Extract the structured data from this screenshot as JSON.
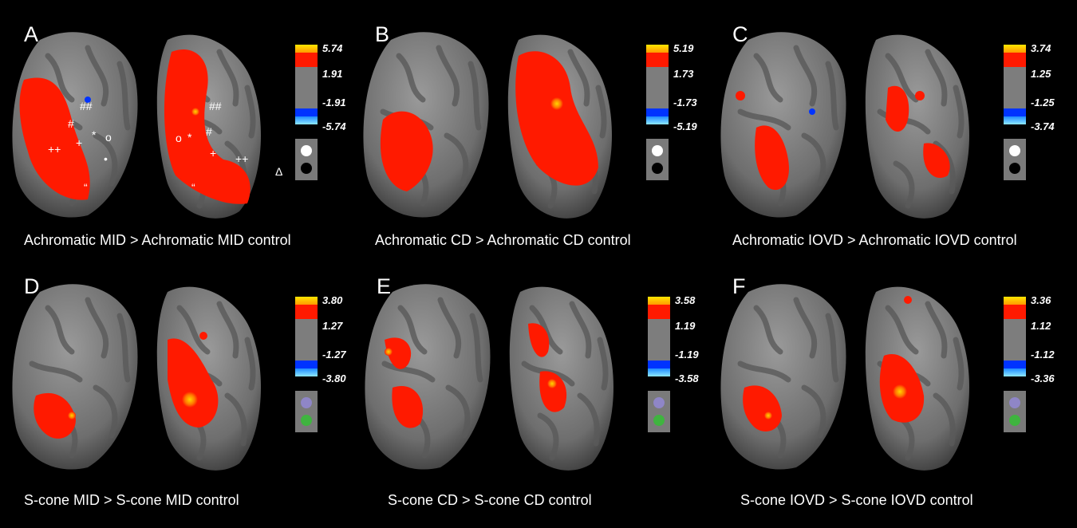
{
  "panels": [
    {
      "letter": "A",
      "caption": "Achromatic MID > Achromatic MID control",
      "scale": {
        "max_pos": "5.74",
        "thr_pos": "1.91",
        "thr_neg": "-1.91",
        "max_neg": "-5.74"
      },
      "stim": [
        "white",
        "black"
      ]
    },
    {
      "letter": "B",
      "caption": "Achromatic CD > Achromatic CD control",
      "scale": {
        "max_pos": "5.19",
        "thr_pos": "1.73",
        "thr_neg": "-1.73",
        "max_neg": "-5.19"
      },
      "stim": [
        "white",
        "black"
      ]
    },
    {
      "letter": "C",
      "caption": "Achromatic IOVD > Achromatic IOVD control",
      "scale": {
        "max_pos": "3.74",
        "thr_pos": "1.25",
        "thr_neg": "-1.25",
        "max_neg": "-3.74"
      },
      "stim": [
        "white",
        "black"
      ]
    },
    {
      "letter": "D",
      "caption": "S-cone MID > S-cone MID control",
      "scale": {
        "max_pos": "3.80",
        "thr_pos": "1.27",
        "thr_neg": "-1.27",
        "max_neg": "-3.80"
      },
      "stim": [
        "lavender",
        "green"
      ]
    },
    {
      "letter": "E",
      "caption": "S-cone CD > S-cone CD control",
      "scale": {
        "max_pos": "3.58",
        "thr_pos": "1.19",
        "thr_neg": "-1.19",
        "max_neg": "-3.58"
      },
      "stim": [
        "lavender",
        "green"
      ]
    },
    {
      "letter": "F",
      "caption": "S-cone IOVD > S-cone IOVD control",
      "scale": {
        "max_pos": "3.36",
        "thr_pos": "1.12",
        "thr_neg": "-1.12",
        "max_neg": "-3.36"
      },
      "stim": [
        "lavender",
        "green"
      ]
    }
  ],
  "colors": {
    "background": "#000000",
    "cortex_light": "#8c8c8c",
    "cortex_dark": "#5a5a5a",
    "activation": "#ff1a00",
    "activation_peak": "#ffd400",
    "deactivation": "#0033ff",
    "stim_white": "#ffffff",
    "stim_black": "#000000",
    "stim_lavender": "#8f86c7",
    "stim_green": "#3fb43f"
  },
  "annotations_A": [
    "##",
    "#",
    "*",
    "o",
    "+",
    "++",
    "•",
    "“",
    "##",
    "#",
    "*",
    "o",
    "+",
    "++",
    "Δ",
    "“"
  ]
}
